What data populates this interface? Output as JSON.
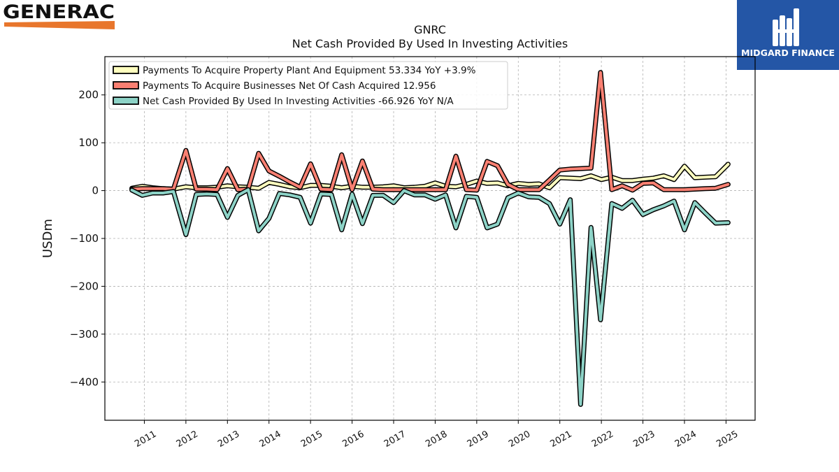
{
  "brand": {
    "left_logo_text": "GENERAC",
    "right_logo_text": "MIDGARD FINANCE",
    "accent_orange": "#e8762c",
    "right_logo_bg": "#2456a6"
  },
  "chart_data": {
    "type": "line",
    "title": "GNRC",
    "subtitle": "Net Cash Provided By Used In Investing Activities",
    "ylabel": "USDm",
    "xlabel": "",
    "ylim": [
      -480,
      280
    ],
    "xlim": [
      2010.05,
      2025.7
    ],
    "yticks": [
      200,
      100,
      0,
      -100,
      -200,
      -300,
      -400
    ],
    "ytick_labels": [
      "200",
      "100",
      "0",
      "−100",
      "−200",
      "−300",
      "−400"
    ],
    "xticks": [
      2011,
      2012,
      2013,
      2014,
      2015,
      2016,
      2017,
      2018,
      2019,
      2020,
      2021,
      2022,
      2023,
      2024,
      2025
    ],
    "xtick_labels": [
      "2011",
      "2012",
      "2013",
      "2014",
      "2015",
      "2016",
      "2017",
      "2018",
      "2019",
      "2020",
      "2021",
      "2022",
      "2023",
      "2024",
      "2025"
    ],
    "grid": true,
    "legend_position": "top-left",
    "series": [
      {
        "name": "Payments To Acquire Property Plant And Equipment  53.334 YoY +3.9%",
        "color": "#ffffbf",
        "points": [
          [
            2010.7,
            5
          ],
          [
            2010.95,
            9
          ],
          [
            2011.2,
            6
          ],
          [
            2011.45,
            4
          ],
          [
            2011.7,
            3
          ],
          [
            2012.0,
            8
          ],
          [
            2012.25,
            6
          ],
          [
            2012.5,
            6
          ],
          [
            2012.75,
            7
          ],
          [
            2013.0,
            10
          ],
          [
            2013.25,
            8
          ],
          [
            2013.5,
            7
          ],
          [
            2013.75,
            5
          ],
          [
            2014.0,
            17
          ],
          [
            2014.25,
            13
          ],
          [
            2014.5,
            8
          ],
          [
            2014.75,
            6
          ],
          [
            2015.0,
            11
          ],
          [
            2015.25,
            11
          ],
          [
            2015.5,
            9
          ],
          [
            2015.75,
            6
          ],
          [
            2016.0,
            9
          ],
          [
            2016.25,
            7
          ],
          [
            2016.5,
            7
          ],
          [
            2016.75,
            8
          ],
          [
            2017.0,
            10
          ],
          [
            2017.25,
            6
          ],
          [
            2017.5,
            7
          ],
          [
            2017.75,
            9
          ],
          [
            2018.0,
            16
          ],
          [
            2018.25,
            9
          ],
          [
            2018.5,
            8
          ],
          [
            2018.75,
            13
          ],
          [
            2019.0,
            20
          ],
          [
            2019.25,
            15
          ],
          [
            2019.5,
            16
          ],
          [
            2019.75,
            10
          ],
          [
            2020.0,
            15
          ],
          [
            2020.25,
            13
          ],
          [
            2020.5,
            14
          ],
          [
            2020.75,
            6
          ],
          [
            2021.0,
            27
          ],
          [
            2021.25,
            26
          ],
          [
            2021.5,
            25
          ],
          [
            2021.75,
            31
          ],
          [
            2022.0,
            23
          ],
          [
            2022.25,
            28
          ],
          [
            2022.5,
            21
          ],
          [
            2022.75,
            21
          ],
          [
            2023.0,
            24
          ],
          [
            2023.25,
            26
          ],
          [
            2023.5,
            31
          ],
          [
            2023.75,
            23
          ],
          [
            2024.0,
            51
          ],
          [
            2024.25,
            27
          ],
          [
            2024.5,
            28
          ],
          [
            2024.75,
            29
          ],
          [
            2025.05,
            55
          ]
        ]
      },
      {
        "name": "Payments To Acquire Businesses Net Of Cash Acquired  12.956",
        "color": "#fb8072",
        "points": [
          [
            2010.7,
            3
          ],
          [
            2010.95,
            4
          ],
          [
            2011.2,
            4
          ],
          [
            2011.45,
            4
          ],
          [
            2011.7,
            3
          ],
          [
            2012.0,
            84
          ],
          [
            2012.25,
            3
          ],
          [
            2012.5,
            3
          ],
          [
            2012.75,
            2
          ],
          [
            2013.0,
            46
          ],
          [
            2013.25,
            2
          ],
          [
            2013.5,
            3
          ],
          [
            2013.75,
            78
          ],
          [
            2014.0,
            41
          ],
          [
            2014.25,
            30
          ],
          [
            2014.5,
            18
          ],
          [
            2014.75,
            7
          ],
          [
            2015.0,
            56
          ],
          [
            2015.25,
            3
          ],
          [
            2015.5,
            2
          ],
          [
            2015.75,
            75
          ],
          [
            2016.0,
            2
          ],
          [
            2016.25,
            62
          ],
          [
            2016.5,
            3
          ],
          [
            2016.75,
            2
          ],
          [
            2017.0,
            2
          ],
          [
            2017.25,
            2
          ],
          [
            2017.5,
            2
          ],
          [
            2017.75,
            2
          ],
          [
            2018.0,
            2
          ],
          [
            2018.25,
            2
          ],
          [
            2018.5,
            72
          ],
          [
            2018.75,
            2
          ],
          [
            2019.0,
            1
          ],
          [
            2019.25,
            61
          ],
          [
            2019.5,
            52
          ],
          [
            2019.75,
            13
          ],
          [
            2020.0,
            2
          ],
          [
            2020.25,
            2
          ],
          [
            2020.5,
            2
          ],
          [
            2020.75,
            22
          ],
          [
            2021.0,
            43
          ],
          [
            2021.25,
            45
          ],
          [
            2021.5,
            46
          ],
          [
            2021.75,
            47
          ],
          [
            2021.98,
            247
          ],
          [
            2022.25,
            2
          ],
          [
            2022.5,
            10
          ],
          [
            2022.75,
            1
          ],
          [
            2023.0,
            15
          ],
          [
            2023.25,
            16
          ],
          [
            2023.5,
            2
          ],
          [
            2023.75,
            2
          ],
          [
            2024.0,
            2
          ],
          [
            2024.25,
            3
          ],
          [
            2024.5,
            4
          ],
          [
            2024.75,
            5
          ],
          [
            2025.05,
            13
          ]
        ]
      },
      {
        "name": "Net Cash Provided By Used In Investing Activities  -66.926 YoY N/A",
        "color": "#8dd3c7",
        "points": [
          [
            2010.7,
            1
          ],
          [
            2010.95,
            -10
          ],
          [
            2011.2,
            -5
          ],
          [
            2011.45,
            -5
          ],
          [
            2011.7,
            -2
          ],
          [
            2012.0,
            -92
          ],
          [
            2012.25,
            -8
          ],
          [
            2012.5,
            -7
          ],
          [
            2012.75,
            -8
          ],
          [
            2013.0,
            -56
          ],
          [
            2013.25,
            -10
          ],
          [
            2013.5,
            2
          ],
          [
            2013.75,
            -84
          ],
          [
            2014.0,
            -58
          ],
          [
            2014.25,
            -6
          ],
          [
            2014.5,
            -9
          ],
          [
            2014.75,
            -14
          ],
          [
            2015.0,
            -68
          ],
          [
            2015.25,
            -7
          ],
          [
            2015.5,
            -8
          ],
          [
            2015.75,
            -82
          ],
          [
            2016.0,
            -7
          ],
          [
            2016.25,
            -69
          ],
          [
            2016.5,
            -10
          ],
          [
            2016.75,
            -10
          ],
          [
            2017.0,
            -25
          ],
          [
            2017.25,
            0
          ],
          [
            2017.5,
            -9
          ],
          [
            2017.75,
            -9
          ],
          [
            2018.0,
            -18
          ],
          [
            2018.25,
            -9
          ],
          [
            2018.5,
            -78
          ],
          [
            2018.75,
            -12
          ],
          [
            2019.0,
            -14
          ],
          [
            2019.25,
            -78
          ],
          [
            2019.5,
            -70
          ],
          [
            2019.75,
            -15
          ],
          [
            2020.0,
            -5
          ],
          [
            2020.25,
            -13
          ],
          [
            2020.5,
            -14
          ],
          [
            2020.75,
            -27
          ],
          [
            2021.0,
            -70
          ],
          [
            2021.25,
            -19
          ],
          [
            2021.5,
            -447
          ],
          [
            2021.75,
            -77
          ],
          [
            2021.98,
            -270
          ],
          [
            2022.25,
            -27
          ],
          [
            2022.5,
            -37
          ],
          [
            2022.75,
            -20
          ],
          [
            2023.0,
            -50
          ],
          [
            2023.25,
            -40
          ],
          [
            2023.5,
            -32
          ],
          [
            2023.75,
            -22
          ],
          [
            2024.0,
            -82
          ],
          [
            2024.25,
            -25
          ],
          [
            2024.5,
            -47
          ],
          [
            2024.75,
            -68
          ],
          [
            2025.05,
            -67
          ]
        ]
      }
    ]
  }
}
